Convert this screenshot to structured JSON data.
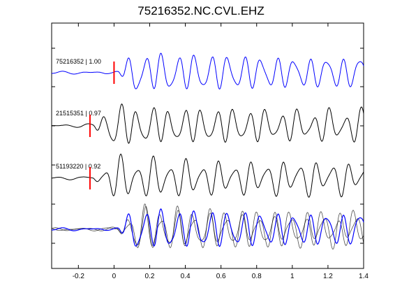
{
  "chart_data": {
    "type": "line",
    "title": "75216352.NC.CVL.EHZ",
    "xlabel": "",
    "ylabel": "",
    "xlim": [
      -0.35,
      1.4
    ],
    "xticks": [
      -0.2,
      0,
      0.2,
      0.4,
      0.6,
      0.8,
      1,
      1.2,
      1.4
    ],
    "xtick_labels": [
      "-0.2",
      "0",
      "0.2",
      "0.4",
      "0.6",
      "0.8",
      "1",
      "1.2",
      "1.4"
    ],
    "grid": false,
    "traces": [
      {
        "label": "75216352 | 1.00",
        "color": "#0000ff",
        "pick_time": 0.0
      },
      {
        "label": "21515351 | 0.97",
        "color": "#000000",
        "pick_time": -0.135
      },
      {
        "label": "51193220 | 0.92",
        "color": "#000000",
        "pick_time": -0.135
      }
    ],
    "pick_color": "#ff0000",
    "overlay": {
      "colors": [
        "#000000",
        "#000000",
        "#0000ff"
      ]
    }
  }
}
